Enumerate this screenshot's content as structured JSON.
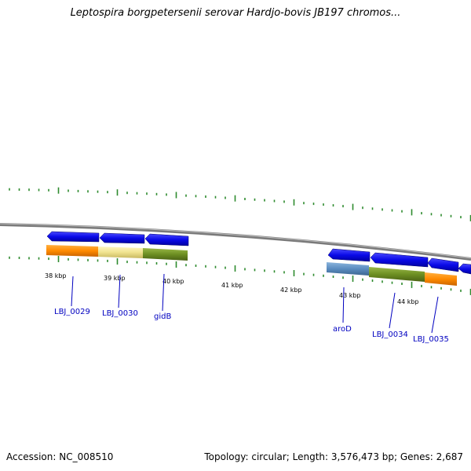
{
  "title": "Leptospira borgpetersenii serovar Hardjo-bovis JB197 chromos...",
  "footer": {
    "accession": "Accession: NC_008510",
    "summary": "Topology: circular; Length: 3,576,473 bp; Genes: 2,687"
  },
  "colors": {
    "backbone": "#7a7a7a",
    "gene_arrow": "#0a0ae8",
    "tick": "#2e8b2e",
    "label": "#0000c0"
  },
  "kbp_labels": [
    "38 kbp",
    "39 kbp",
    "40 kbp",
    "41 kbp",
    "42 kbp",
    "43 kbp",
    "44 kbp"
  ],
  "genes": [
    {
      "label": "LBJ_0029"
    },
    {
      "label": "LBJ_0030"
    },
    {
      "label": "gidB"
    },
    {
      "label": "aroD"
    },
    {
      "label": "LBJ_0034"
    },
    {
      "label": "LBJ_0035"
    }
  ]
}
